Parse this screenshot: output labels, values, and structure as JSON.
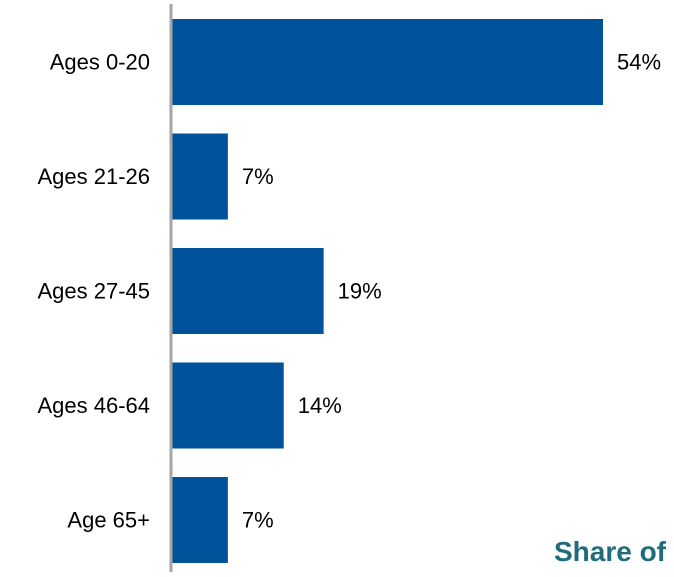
{
  "chart_data": {
    "type": "bar",
    "orientation": "horizontal",
    "categories": [
      "Ages 0-20",
      "Ages 21-26",
      "Ages 27-45",
      "Ages 46-64",
      "Age 65+"
    ],
    "values": [
      54,
      7,
      19,
      14,
      7
    ],
    "value_labels": [
      "54%",
      "7%",
      "19%",
      "14%",
      "7%"
    ],
    "value_unit": "%",
    "xlim": [
      0,
      54
    ],
    "grid": false,
    "legend": "none"
  },
  "colors": {
    "bar": "#00529B",
    "axis": "#A6A6A6",
    "text": "#000000",
    "title": "#1F6C7F"
  },
  "footer": {
    "title_visible_text": "Share of"
  }
}
